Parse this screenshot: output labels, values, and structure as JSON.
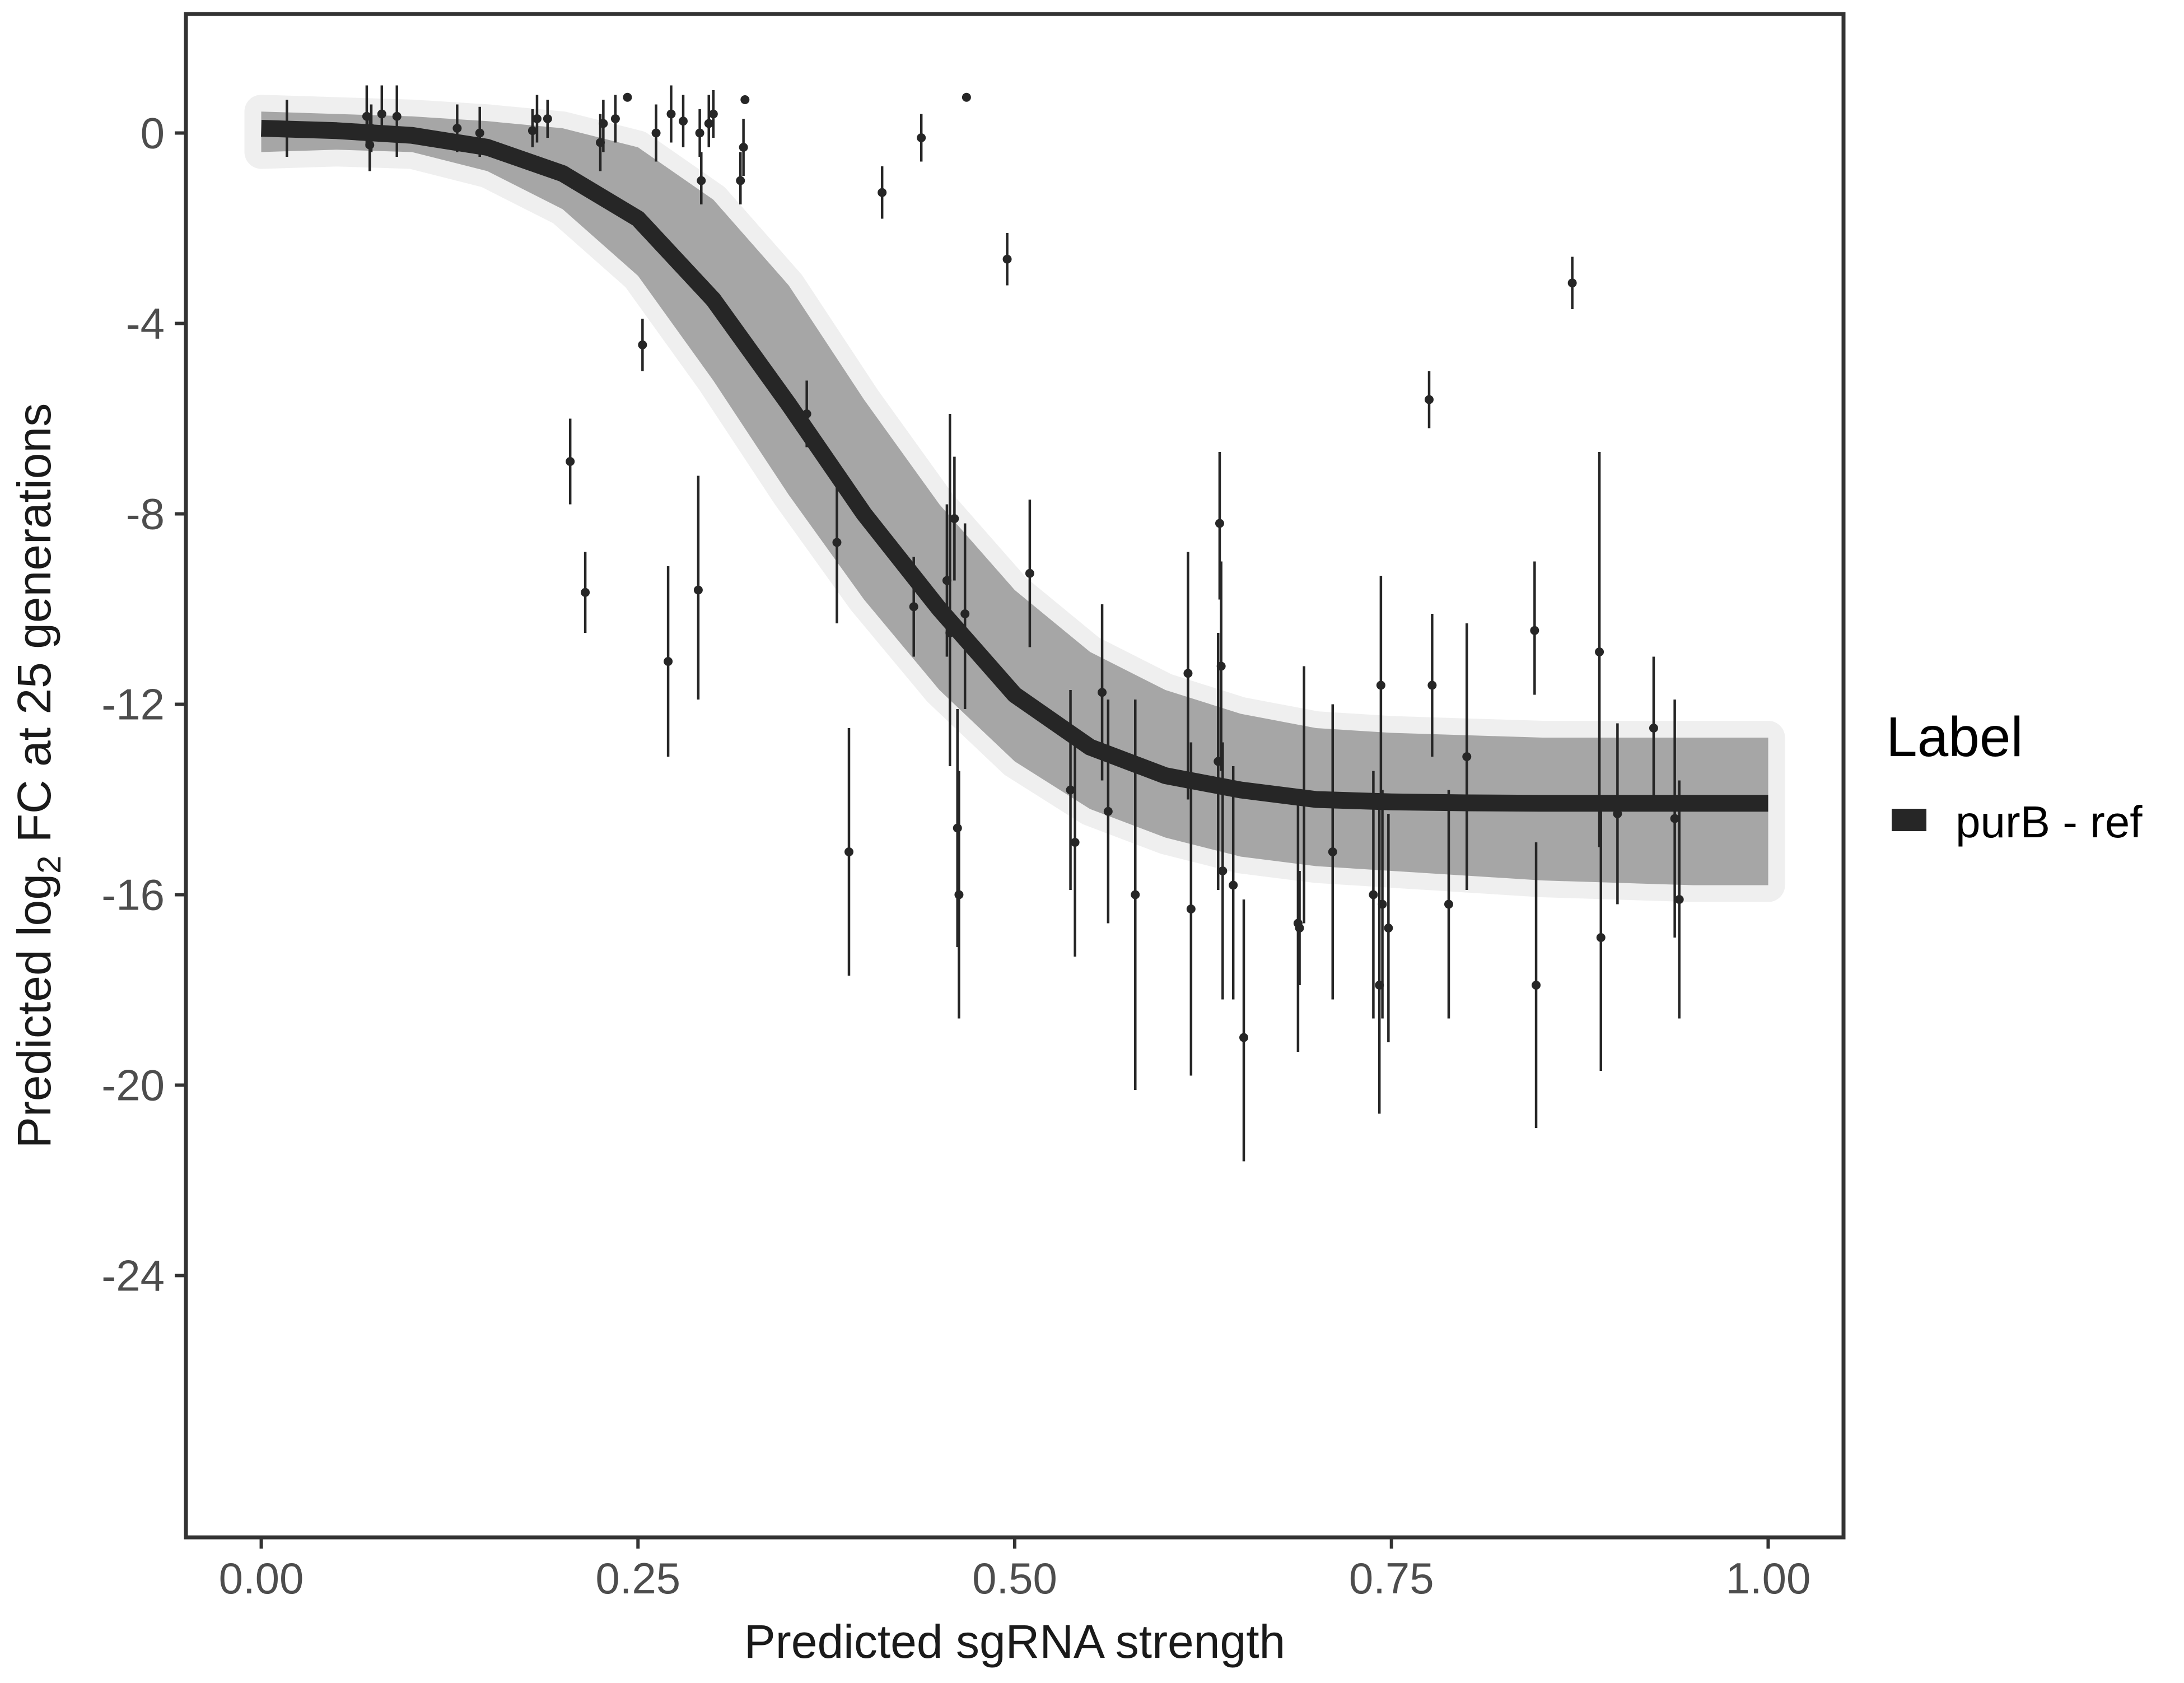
{
  "chart_data": {
    "type": "line",
    "title": "",
    "xlabel": "Predicted sgRNA strength",
    "ylabel_prefix": "Predicted  log",
    "ylabel_sub": "2",
    "ylabel_suffix": " FC at 25 generations",
    "xlim": [
      -0.05,
      1.05
    ],
    "ylim": [
      -29.5,
      2.5
    ],
    "x_ticks": [
      {
        "value": 0.0,
        "label": "0.00"
      },
      {
        "value": 0.25,
        "label": "0.25"
      },
      {
        "value": 0.5,
        "label": "0.50"
      },
      {
        "value": 0.75,
        "label": "0.75"
      },
      {
        "value": 1.0,
        "label": "1.00"
      }
    ],
    "y_ticks": [
      {
        "value": 0,
        "label": "0"
      },
      {
        "value": -4,
        "label": "-4"
      },
      {
        "value": -8,
        "label": "-8"
      },
      {
        "value": -12,
        "label": "-12"
      },
      {
        "value": -16,
        "label": "-16"
      },
      {
        "value": -20,
        "label": "-20"
      },
      {
        "value": -24,
        "label": "-24"
      }
    ],
    "grid": false,
    "legend": {
      "title": "Label",
      "placement": "right",
      "entries": [
        {
          "label": "purB - ref",
          "color": "#262626"
        }
      ]
    },
    "series": [
      {
        "name": "purB - ref",
        "type": "line",
        "color": "#262626",
        "x": [
          0.0,
          0.05,
          0.1,
          0.15,
          0.2,
          0.25,
          0.3,
          0.35,
          0.4,
          0.45,
          0.5,
          0.55,
          0.6,
          0.65,
          0.7,
          0.75,
          0.8,
          0.85,
          0.9,
          0.95,
          1.0
        ],
        "y": [
          0.1,
          0.05,
          -0.05,
          -0.3,
          -0.85,
          -1.8,
          -3.5,
          -5.7,
          -8.0,
          -10.0,
          -11.8,
          -12.9,
          -13.5,
          -13.8,
          -14.0,
          -14.05,
          -14.07,
          -14.08,
          -14.08,
          -14.08,
          -14.08
        ]
      },
      {
        "name": "",
        "type": "posterior-band",
        "color": "#a6a6a6",
        "x": [
          0.0,
          0.05,
          0.1,
          0.15,
          0.2,
          0.25,
          0.3,
          0.35,
          0.4,
          0.45,
          0.5,
          0.55,
          0.6,
          0.65,
          0.7,
          0.75,
          0.8,
          0.85,
          0.9,
          0.95,
          1.0
        ],
        "y_lower": [
          -0.4,
          -0.35,
          -0.4,
          -0.8,
          -1.6,
          -3.0,
          -5.2,
          -7.6,
          -9.8,
          -11.7,
          -13.2,
          -14.2,
          -14.8,
          -15.2,
          -15.4,
          -15.5,
          -15.6,
          -15.7,
          -15.75,
          -15.8,
          -15.8
        ],
        "y_upper": [
          0.45,
          0.4,
          0.35,
          0.25,
          0.1,
          -0.3,
          -1.4,
          -3.2,
          -5.6,
          -7.8,
          -9.6,
          -10.9,
          -11.7,
          -12.2,
          -12.5,
          -12.6,
          -12.65,
          -12.7,
          -12.7,
          -12.7,
          -12.7
        ]
      },
      {
        "name": "",
        "type": "points-errorbars",
        "color": "#262626",
        "points": [
          {
            "x": 0.017,
            "y": 0.05,
            "ylo": -0.5,
            "yhi": 0.7
          },
          {
            "x": 0.07,
            "y": 0.35,
            "ylo": -0.3,
            "yhi": 1.0
          },
          {
            "x": 0.072,
            "y": -0.25,
            "ylo": -0.8,
            "yhi": 0.3
          },
          {
            "x": 0.073,
            "y": 0.1,
            "ylo": -0.4,
            "yhi": 0.6
          },
          {
            "x": 0.08,
            "y": 0.4,
            "ylo": -0.1,
            "yhi": 1.0
          },
          {
            "x": 0.09,
            "y": 0.35,
            "ylo": -0.5,
            "yhi": 1.0
          },
          {
            "x": 0.13,
            "y": 0.1,
            "ylo": -0.4,
            "yhi": 0.6
          },
          {
            "x": 0.145,
            "y": 0.0,
            "ylo": -0.5,
            "yhi": 0.55
          },
          {
            "x": 0.18,
            "y": 0.05,
            "ylo": -0.3,
            "yhi": 0.5
          },
          {
            "x": 0.183,
            "y": 0.3,
            "ylo": -0.2,
            "yhi": 0.8
          },
          {
            "x": 0.19,
            "y": 0.3,
            "ylo": -0.1,
            "yhi": 0.7
          },
          {
            "x": 0.205,
            "y": -6.9,
            "ylo": -7.8,
            "yhi": -6.0
          },
          {
            "x": 0.215,
            "y": -9.65,
            "ylo": -10.5,
            "yhi": -8.8
          },
          {
            "x": 0.225,
            "y": -0.2,
            "ylo": -0.8,
            "yhi": 0.4
          },
          {
            "x": 0.227,
            "y": 0.2,
            "ylo": -0.4,
            "yhi": 0.7
          },
          {
            "x": 0.235,
            "y": 0.3,
            "ylo": -0.2,
            "yhi": 0.8
          },
          {
            "x": 0.243,
            "y": 0.75,
            "ylo": 0.7,
            "yhi": 0.8
          },
          {
            "x": 0.253,
            "y": -4.45,
            "ylo": -5.0,
            "yhi": -3.9
          },
          {
            "x": 0.262,
            "y": 0.0,
            "ylo": -0.6,
            "yhi": 0.6
          },
          {
            "x": 0.27,
            "y": -11.1,
            "ylo": -13.1,
            "yhi": -9.1
          },
          {
            "x": 0.272,
            "y": 0.4,
            "ylo": -0.2,
            "yhi": 1.0
          },
          {
            "x": 0.28,
            "y": 0.25,
            "ylo": -0.3,
            "yhi": 0.8
          },
          {
            "x": 0.29,
            "y": -9.6,
            "ylo": -11.9,
            "yhi": -7.2
          },
          {
            "x": 0.291,
            "y": 0.0,
            "ylo": -0.5,
            "yhi": 0.5
          },
          {
            "x": 0.292,
            "y": -1.0,
            "ylo": -1.5,
            "yhi": -0.4
          },
          {
            "x": 0.297,
            "y": 0.2,
            "ylo": -0.3,
            "yhi": 0.8
          },
          {
            "x": 0.3,
            "y": 0.4,
            "ylo": -0.1,
            "yhi": 0.9
          },
          {
            "x": 0.318,
            "y": -1.0,
            "ylo": -1.5,
            "yhi": -0.4
          },
          {
            "x": 0.32,
            "y": -0.3,
            "ylo": -0.9,
            "yhi": 0.3
          },
          {
            "x": 0.321,
            "y": 0.7,
            "ylo": 0.65,
            "yhi": 0.75
          },
          {
            "x": 0.362,
            "y": -5.9,
            "ylo": -6.6,
            "yhi": -5.2
          },
          {
            "x": 0.382,
            "y": -8.6,
            "ylo": -10.3,
            "yhi": -6.9
          },
          {
            "x": 0.39,
            "y": -15.1,
            "ylo": -17.7,
            "yhi": -12.5
          },
          {
            "x": 0.412,
            "y": -1.25,
            "ylo": -1.8,
            "yhi": -0.7
          },
          {
            "x": 0.433,
            "y": -9.95,
            "ylo": -11.0,
            "yhi": -8.9
          },
          {
            "x": 0.438,
            "y": -0.1,
            "ylo": -0.6,
            "yhi": 0.4
          },
          {
            "x": 0.455,
            "y": -9.4,
            "ylo": -11.0,
            "yhi": -7.8
          },
          {
            "x": 0.457,
            "y": -10.5,
            "ylo": -13.3,
            "yhi": -5.9
          },
          {
            "x": 0.46,
            "y": -8.1,
            "ylo": -9.4,
            "yhi": -6.8
          },
          {
            "x": 0.462,
            "y": -14.6,
            "ylo": -17.1,
            "yhi": -12.1
          },
          {
            "x": 0.463,
            "y": -16.0,
            "ylo": -18.6,
            "yhi": -13.4
          },
          {
            "x": 0.467,
            "y": -10.1,
            "ylo": -12.1,
            "yhi": -8.2
          },
          {
            "x": 0.468,
            "y": 0.75,
            "ylo": 0.7,
            "yhi": 0.8
          },
          {
            "x": 0.495,
            "y": -2.65,
            "ylo": -3.2,
            "yhi": -2.1
          },
          {
            "x": 0.51,
            "y": -9.25,
            "ylo": -10.8,
            "yhi": -7.7
          },
          {
            "x": 0.537,
            "y": -13.8,
            "ylo": -15.9,
            "yhi": -11.7
          },
          {
            "x": 0.54,
            "y": -14.9,
            "ylo": -17.3,
            "yhi": -12.6
          },
          {
            "x": 0.558,
            "y": -11.75,
            "ylo": -13.6,
            "yhi": -9.9
          },
          {
            "x": 0.562,
            "y": -14.25,
            "ylo": -16.6,
            "yhi": -11.9
          },
          {
            "x": 0.58,
            "y": -16.0,
            "ylo": -20.1,
            "yhi": -11.9
          },
          {
            "x": 0.615,
            "y": -11.35,
            "ylo": -14.0,
            "yhi": -8.8
          },
          {
            "x": 0.617,
            "y": -16.3,
            "ylo": -19.8,
            "yhi": -12.8
          },
          {
            "x": 0.635,
            "y": -13.2,
            "ylo": -15.9,
            "yhi": -10.5
          },
          {
            "x": 0.636,
            "y": -8.2,
            "ylo": -9.8,
            "yhi": -6.7
          },
          {
            "x": 0.637,
            "y": -11.2,
            "ylo": -13.4,
            "yhi": -9.0
          },
          {
            "x": 0.638,
            "y": -15.5,
            "ylo": -18.2,
            "yhi": -12.8
          },
          {
            "x": 0.645,
            "y": -15.8,
            "ylo": -18.2,
            "yhi": -13.3
          },
          {
            "x": 0.652,
            "y": -19.0,
            "ylo": -21.6,
            "yhi": -16.1
          },
          {
            "x": 0.688,
            "y": -16.6,
            "ylo": -19.3,
            "yhi": -14.1
          },
          {
            "x": 0.689,
            "y": -16.7,
            "ylo": -17.9,
            "yhi": -15.5
          },
          {
            "x": 0.692,
            "y": -13.9,
            "ylo": -16.6,
            "yhi": -11.2
          },
          {
            "x": 0.711,
            "y": -15.1,
            "ylo": -18.2,
            "yhi": -12.0
          },
          {
            "x": 0.738,
            "y": -16.0,
            "ylo": -18.6,
            "yhi": -13.4
          },
          {
            "x": 0.742,
            "y": -17.9,
            "ylo": -20.6,
            "yhi": -14.2
          },
          {
            "x": 0.743,
            "y": -11.6,
            "ylo": -13.9,
            "yhi": -9.3
          },
          {
            "x": 0.744,
            "y": -16.2,
            "ylo": -18.6,
            "yhi": -13.8
          },
          {
            "x": 0.748,
            "y": -16.7,
            "ylo": -19.1,
            "yhi": -14.3
          },
          {
            "x": 0.775,
            "y": -5.6,
            "ylo": -6.2,
            "yhi": -5.0
          },
          {
            "x": 0.777,
            "y": -11.6,
            "ylo": -13.1,
            "yhi": -10.1
          },
          {
            "x": 0.788,
            "y": -16.2,
            "ylo": -18.6,
            "yhi": -13.8
          },
          {
            "x": 0.8,
            "y": -13.1,
            "ylo": -15.9,
            "yhi": -10.3
          },
          {
            "x": 0.845,
            "y": -10.45,
            "ylo": -11.8,
            "yhi": -9.0
          },
          {
            "x": 0.846,
            "y": -17.9,
            "ylo": -20.9,
            "yhi": -14.9
          },
          {
            "x": 0.87,
            "y": -3.15,
            "ylo": -3.7,
            "yhi": -2.6
          },
          {
            "x": 0.888,
            "y": -10.9,
            "ylo": -15.0,
            "yhi": -6.7
          },
          {
            "x": 0.889,
            "y": -16.9,
            "ylo": -19.7,
            "yhi": -14.1
          },
          {
            "x": 0.9,
            "y": -14.3,
            "ylo": -16.2,
            "yhi": -12.4
          },
          {
            "x": 0.924,
            "y": -12.5,
            "ylo": -14.0,
            "yhi": -11.0
          },
          {
            "x": 0.938,
            "y": -14.4,
            "ylo": -16.9,
            "yhi": -11.9
          },
          {
            "x": 0.941,
            "y": -16.1,
            "ylo": -18.6,
            "yhi": -13.6
          }
        ]
      }
    ]
  }
}
